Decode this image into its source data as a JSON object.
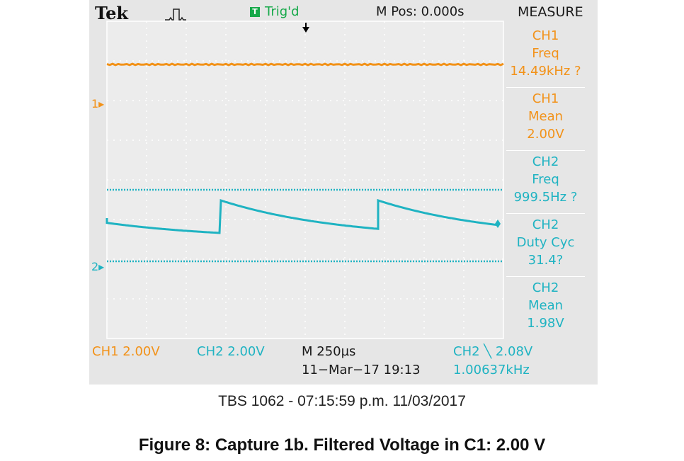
{
  "scope": {
    "brand": "Tek",
    "trigger_badge": "T",
    "trigger_status": "Trig'd",
    "m_pos": "M Pos: 0.000s",
    "measure_title": "MEASURE",
    "measurements": [
      {
        "channel": "CH1",
        "name": "Freq",
        "value": "14.49kHz ?",
        "color": "#f29219"
      },
      {
        "channel": "CH1",
        "name": "Mean",
        "value": "2.00V",
        "color": "#f29219"
      },
      {
        "channel": "CH2",
        "name": "Freq",
        "value": "999.5Hz ?",
        "color": "#1fb3c2"
      },
      {
        "channel": "CH2",
        "name": "Duty Cyc",
        "value": "31.4?",
        "color": "#1fb3c2"
      },
      {
        "channel": "CH2",
        "name": "Mean",
        "value": "1.98V",
        "color": "#1fb3c2"
      }
    ],
    "ch1_marker": "1",
    "ch2_marker": "2",
    "ch1_scale": "CH1  2.00V",
    "ch2_scale": "CH2  2.00V",
    "timebase": "M 250µs",
    "date_time": "11−Mar−17 19:13",
    "trigger_setting": "CH2 ╲ 2.08V",
    "trigger_freq": "1.00637kHz",
    "colors": {
      "ch1": "#f29219",
      "ch2": "#1fb3c2",
      "background": "#e6e6e6",
      "trigger": "#17a94a"
    }
  },
  "caption": "TBS 1062 - 07:15:59 p.m.     11/03/2017",
  "figure_title": "Figure 8: Capture 1b. Filtered Voltage in C1: 2.00 V"
}
